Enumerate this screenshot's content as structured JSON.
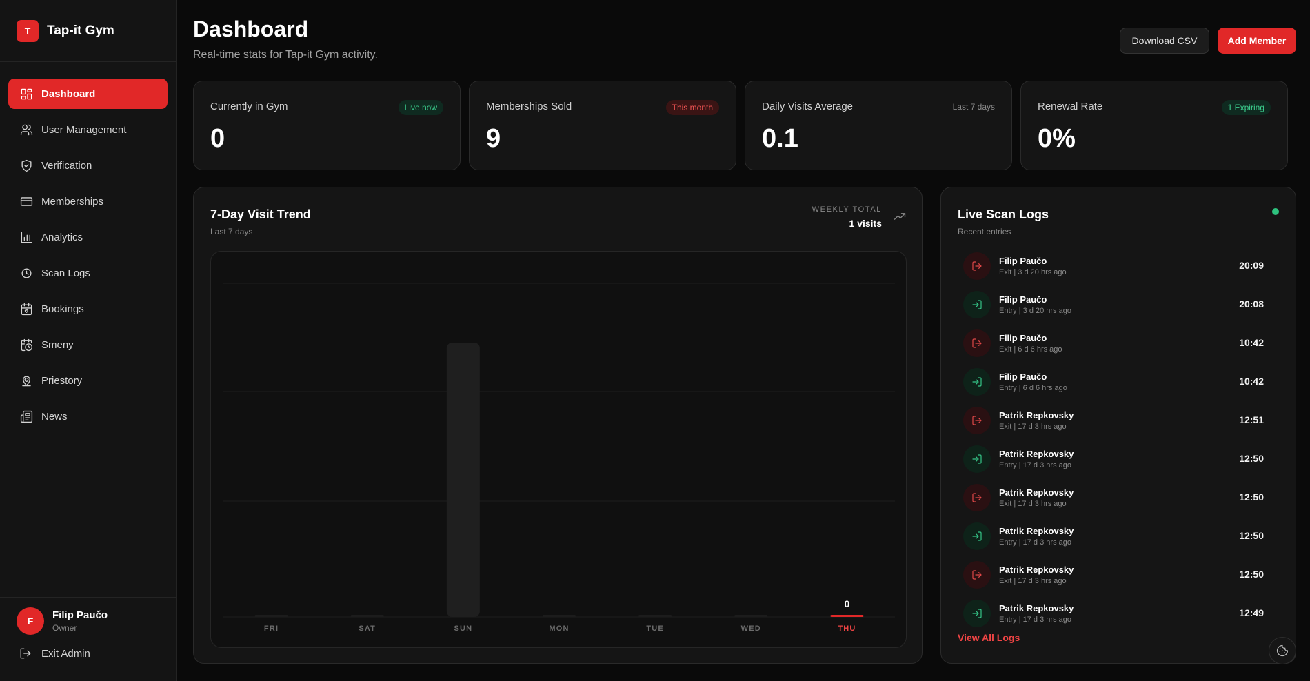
{
  "brand": {
    "logo_letter": "T",
    "name": "Tap-it Gym"
  },
  "sidebar": {
    "items": [
      {
        "label": "Dashboard",
        "icon": "dashboard-icon",
        "active": true
      },
      {
        "label": "User Management",
        "icon": "users-icon"
      },
      {
        "label": "Verification",
        "icon": "shield-check-icon"
      },
      {
        "label": "Memberships",
        "icon": "credit-card-icon"
      },
      {
        "label": "Analytics",
        "icon": "bar-chart-icon"
      },
      {
        "label": "Scan Logs",
        "icon": "scan-icon"
      },
      {
        "label": "Bookings",
        "icon": "calendar-heart-icon"
      },
      {
        "label": "Smeny",
        "icon": "calendar-clock-icon"
      },
      {
        "label": "Priestory",
        "icon": "map-pin-icon"
      },
      {
        "label": "News",
        "icon": "newspaper-icon"
      }
    ]
  },
  "user": {
    "avatar_letter": "F",
    "name": "Filip Paučo",
    "role": "Owner",
    "exit_label": "Exit Admin"
  },
  "header": {
    "title": "Dashboard",
    "subtitle": "Real-time stats for Tap-it Gym activity.",
    "download_label": "Download CSV",
    "add_member_label": "Add Member"
  },
  "stats": [
    {
      "label": "Currently in Gym",
      "value": "0",
      "badge": "Live now",
      "badge_style": "green"
    },
    {
      "label": "Memberships Sold",
      "value": "9",
      "badge": "This month",
      "badge_style": "red"
    },
    {
      "label": "Daily Visits Average",
      "value": "0.1",
      "badge": "Last 7 days",
      "badge_style": "plain"
    },
    {
      "label": "Renewal Rate",
      "value": "0%",
      "badge": "1 Expiring",
      "badge_style": "green"
    }
  ],
  "trend": {
    "title": "7-Day Visit Trend",
    "subtitle": "Last 7 days",
    "weekly_total_label": "WEEKLY TOTAL",
    "weekly_total_value": "1 visits",
    "trend_icon": "trending-up-icon"
  },
  "chart_data": {
    "type": "bar",
    "categories": [
      "FRI",
      "SAT",
      "SUN",
      "MON",
      "TUE",
      "WED",
      "THU"
    ],
    "values": [
      0,
      0,
      1,
      0,
      0,
      0,
      0
    ],
    "highlight_index": 6,
    "highlight_label": "0",
    "ylim": [
      0,
      1.2
    ],
    "grid": true,
    "colors": {
      "bar": "#1f1f1f",
      "highlight": "#e12828",
      "label": "#6b6b6b",
      "highlight_label": "#ef4444"
    }
  },
  "logs": {
    "title": "Live Scan Logs",
    "subtitle": "Recent entries",
    "view_all_label": "View All Logs",
    "entries": [
      {
        "name": "Filip Paučo",
        "detail": "Exit | 3 d 20 hrs ago",
        "time": "20:09",
        "type": "exit"
      },
      {
        "name": "Filip Paučo",
        "detail": "Entry | 3 d 20 hrs ago",
        "time": "20:08",
        "type": "entry"
      },
      {
        "name": "Filip Paučo",
        "detail": "Exit | 6 d 6 hrs ago",
        "time": "10:42",
        "type": "exit"
      },
      {
        "name": "Filip Paučo",
        "detail": "Entry | 6 d 6 hrs ago",
        "time": "10:42",
        "type": "entry"
      },
      {
        "name": "Patrik Repkovsky",
        "detail": "Exit | 17 d 3 hrs ago",
        "time": "12:51",
        "type": "exit"
      },
      {
        "name": "Patrik Repkovsky",
        "detail": "Entry | 17 d 3 hrs ago",
        "time": "12:50",
        "type": "entry"
      },
      {
        "name": "Patrik Repkovsky",
        "detail": "Exit | 17 d 3 hrs ago",
        "time": "12:50",
        "type": "exit"
      },
      {
        "name": "Patrik Repkovsky",
        "detail": "Entry | 17 d 3 hrs ago",
        "time": "12:50",
        "type": "entry"
      },
      {
        "name": "Patrik Repkovsky",
        "detail": "Exit | 17 d 3 hrs ago",
        "time": "12:50",
        "type": "exit"
      },
      {
        "name": "Patrik Repkovsky",
        "detail": "Entry | 17 d 3 hrs ago",
        "time": "12:49",
        "type": "entry"
      }
    ]
  },
  "colors": {
    "accent": "#e12828",
    "live": "#2ec27e"
  }
}
